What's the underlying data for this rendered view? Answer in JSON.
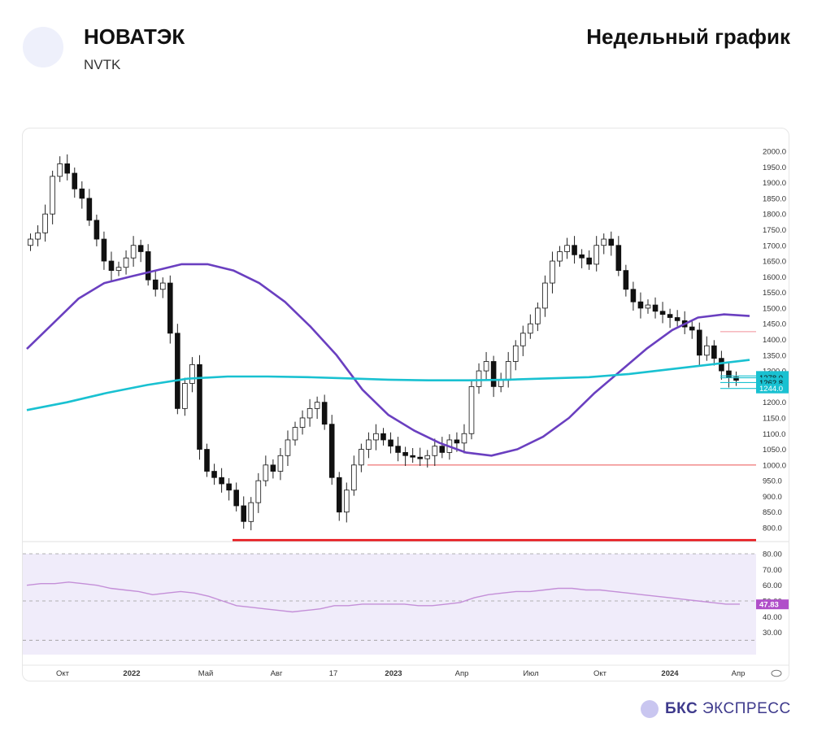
{
  "header": {
    "company": "НОВАТЭК",
    "ticker": "NVTK",
    "chart_type": "Недельный график"
  },
  "brand": {
    "bold": "БКС",
    "rest": "ЭКСПРЕСС"
  },
  "chart_data": [
    {
      "type": "candlestick",
      "ylim": [
        700,
        2050
      ],
      "price_ticks": [
        800,
        850,
        900,
        950,
        1000,
        1050,
        1100,
        1150,
        1200,
        1250,
        1300,
        1350,
        1400,
        1450,
        1500,
        1550,
        1600,
        1650,
        1700,
        1750,
        1800,
        1850,
        1900,
        1950,
        2000
      ],
      "price_labels": [
        "1283.8",
        "1278.0",
        "1262.8",
        "1244.0"
      ],
      "time_labels": [
        "Окт",
        "2022",
        "Май",
        "Авг",
        "17",
        "2023",
        "Апр",
        "Июл",
        "Окт",
        "2024",
        "Апр"
      ],
      "close": [
        1720,
        1740,
        1800,
        1920,
        1960,
        1930,
        1880,
        1850,
        1780,
        1720,
        1650,
        1620,
        1630,
        1660,
        1700,
        1680,
        1590,
        1560,
        1580,
        1420,
        1180,
        1260,
        1320,
        1050,
        980,
        960,
        940,
        920,
        870,
        820,
        880,
        950,
        1000,
        980,
        1030,
        1080,
        1120,
        1150,
        1180,
        1200,
        1130,
        960,
        850,
        920,
        1000,
        1050,
        1080,
        1100,
        1080,
        1060,
        1040,
        1030,
        1025,
        1020,
        1030,
        1060,
        1040,
        1080,
        1070,
        1100,
        1250,
        1300,
        1330,
        1250,
        1270,
        1330,
        1380,
        1420,
        1450,
        1500,
        1580,
        1650,
        1680,
        1700,
        1670,
        1660,
        1640,
        1700,
        1720,
        1700,
        1620,
        1560,
        1520,
        1500,
        1510,
        1490,
        1480,
        1470,
        1460,
        1440,
        1430,
        1350,
        1380,
        1340,
        1300,
        1280,
        1270
      ],
      "lines": [
        {
          "name": "",
          "color": "#6a3fc0",
          "values": [
            1370,
            1450,
            1530,
            1580,
            1600,
            1620,
            1640,
            1640,
            1620,
            1580,
            1520,
            1440,
            1350,
            1240,
            1160,
            1110,
            1070,
            1040,
            1030,
            1050,
            1090,
            1150,
            1230,
            1300,
            1370,
            1430,
            1470,
            1480,
            1475
          ]
        },
        {
          "name": "",
          "color": "#19c1d1",
          "values": [
            1175,
            1200,
            1230,
            1255,
            1275,
            1282,
            1282,
            1280,
            1276,
            1272,
            1270,
            1270,
            1272,
            1276,
            1280,
            1290,
            1305,
            1320,
            1335
          ]
        }
      ],
      "levels": [
        {
          "value": 1000,
          "color": "#f08080"
        },
        {
          "value": 760,
          "color": "#e8171c"
        },
        {
          "value": 1425,
          "color": "#f5aeb4"
        }
      ]
    },
    {
      "type": "line",
      "ylim": [
        20,
        85
      ],
      "ticks": [
        30,
        40,
        50,
        60,
        70,
        80
      ],
      "tick_labels": [
        "30.00",
        "40.00",
        "50.00",
        "60.00",
        "70.00",
        "80.00"
      ],
      "current_label": "47.83",
      "color": "#c48fd8",
      "values": [
        60,
        61,
        61,
        62,
        61,
        60,
        58,
        57,
        56,
        54,
        55,
        56,
        55,
        53,
        50,
        47,
        46,
        45,
        44,
        43,
        44,
        45,
        47,
        47,
        48,
        48,
        48,
        48,
        47,
        47,
        48,
        49,
        52,
        54,
        55,
        56,
        56,
        57,
        58,
        58,
        57,
        57,
        56,
        55,
        54,
        53,
        52,
        51,
        50,
        49,
        48,
        48
      ]
    }
  ]
}
